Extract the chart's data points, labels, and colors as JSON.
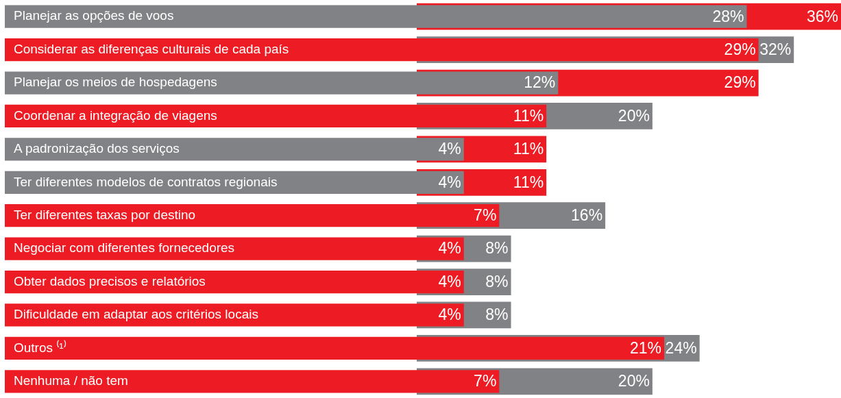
{
  "chart_data": {
    "type": "bar",
    "orientation": "horizontal",
    "tick_labels": false,
    "grid": false,
    "legend": false,
    "categories": [
      "Planejar as opções de voos",
      "Considerar as diferenças culturais de cada país",
      "Planejar os meios de hospedagens",
      "Coordenar a integração de viagens",
      "A padronização dos serviços",
      "Ter diferentes modelos de contratos regionais",
      "Ter diferentes taxas por destino",
      "Negociar com diferentes fornecedores",
      "Obter dados precisos e relatórios",
      "Dificuldade em adaptar aos critérios locais",
      "Outros ⁽¹⁾",
      "Nenhuma / não tem"
    ],
    "series": [
      {
        "colors": [
          "#808285",
          "#ed1c24",
          "#808285",
          "#ed1c24",
          "#808285",
          "#808285",
          "#ed1c24",
          "#ed1c24",
          "#ed1c24",
          "#ed1c24",
          "#ed1c24",
          "#ed1c24"
        ],
        "values": [
          28,
          29,
          12,
          11,
          4,
          4,
          7,
          4,
          4,
          4,
          21,
          7
        ],
        "value_labels": [
          "28%",
          "29%",
          "12%",
          "11%",
          "4%",
          "4%",
          "7%",
          "4%",
          "4%",
          "4%",
          "21%",
          "7%"
        ]
      },
      {
        "colors": [
          "#ed1c24",
          "#808285",
          "#ed1c24",
          "#808285",
          "#ed1c24",
          "#ed1c24",
          "#808285",
          "#808285",
          "#808285",
          "#808285",
          "#808285",
          "#808285"
        ],
        "values": [
          36,
          32,
          29,
          20,
          11,
          11,
          16,
          8,
          8,
          8,
          24,
          20
        ],
        "value_labels": [
          "36%",
          "32%",
          "29%",
          "20%",
          "11%",
          "11%",
          "16%",
          "8%",
          "8%",
          "8%",
          "24%",
          "20%"
        ]
      }
    ]
  }
}
